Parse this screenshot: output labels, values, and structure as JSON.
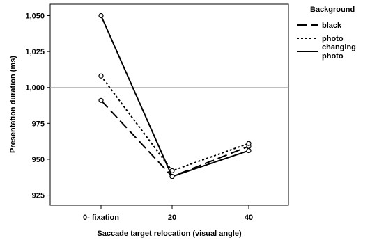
{
  "chart_data": {
    "type": "line",
    "categories": [
      "0- fixation",
      "20",
      "40"
    ],
    "series": [
      {
        "name": "black",
        "values": [
          991,
          938,
          959
        ],
        "dash": "14,6"
      },
      {
        "name": "photo",
        "values": [
          1008,
          942,
          961
        ],
        "dash": "3,3"
      },
      {
        "name": "changing photo",
        "name_lines": [
          "changing",
          "photo"
        ],
        "values": [
          1050,
          938,
          956
        ],
        "dash": ""
      }
    ],
    "xlabel": "Saccade target relocation (visual angle)",
    "ylabel": "Presentation duration (ms)",
    "ylim": [
      918,
      1058
    ],
    "yticks": [
      925,
      950,
      975,
      1000,
      1025,
      1050
    ],
    "ytick_labels": [
      "925",
      "950",
      "975",
      "1,000",
      "1,025",
      "1,050"
    ],
    "reference_line": 1000,
    "legend_title": "Background",
    "legend_position": "right",
    "grid": false,
    "line_color": "#000000",
    "reference_color": "#aaaaaa"
  }
}
